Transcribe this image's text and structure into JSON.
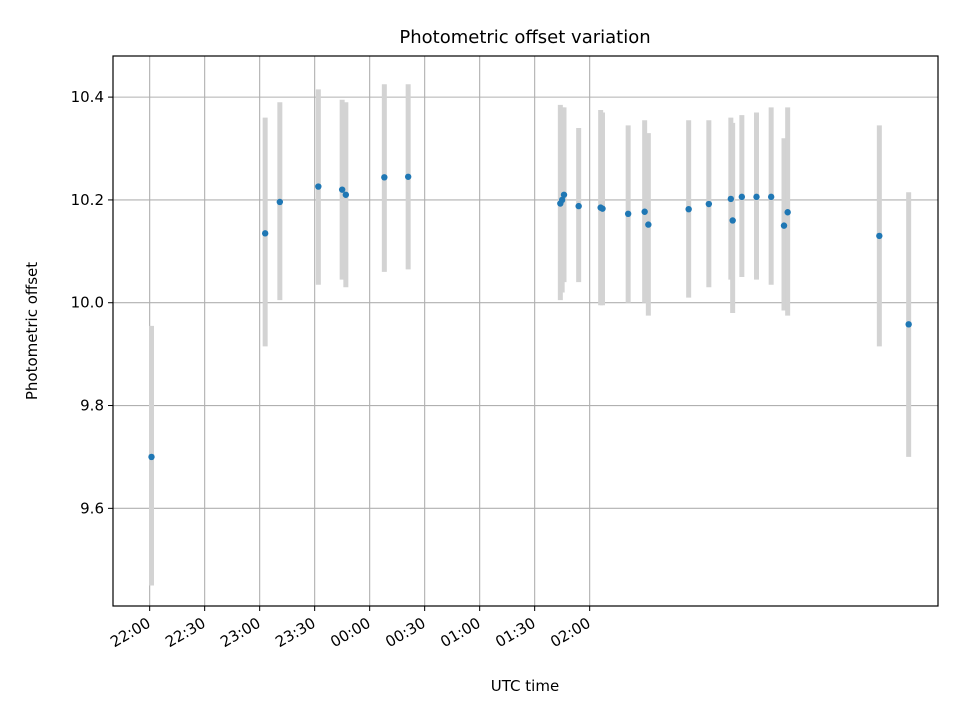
{
  "chart_data": {
    "type": "scatter",
    "title": "Photometric offset variation",
    "xlabel": "UTC time",
    "ylabel": "Photometric offset",
    "grid": true,
    "x_unit": "minutes after 22:00 UTC",
    "xlim": [
      -20,
      430
    ],
    "ylim": [
      9.41,
      10.48
    ],
    "x_ticks": [
      {
        "value": 0,
        "label": "22:00"
      },
      {
        "value": 30,
        "label": "22:30"
      },
      {
        "value": 60,
        "label": "23:00"
      },
      {
        "value": 90,
        "label": "23:30"
      },
      {
        "value": 120,
        "label": "00:00"
      },
      {
        "value": 150,
        "label": "00:30"
      },
      {
        "value": 180,
        "label": "01:00"
      },
      {
        "value": 210,
        "label": "01:30"
      },
      {
        "value": 240,
        "label": "02:00"
      }
    ],
    "y_ticks": [
      {
        "value": 9.6,
        "label": "9.6"
      },
      {
        "value": 9.8,
        "label": "9.8"
      },
      {
        "value": 10.0,
        "label": "10.0"
      },
      {
        "value": 10.2,
        "label": "10.2"
      },
      {
        "value": 10.4,
        "label": "10.4"
      }
    ],
    "series": [
      {
        "name": "Photometric offset",
        "color": "#1f77b4",
        "errorbar_color": "#d3d3d3",
        "points": [
          {
            "x": 1,
            "y": 9.7,
            "ylow": 9.45,
            "yhigh": 9.955
          },
          {
            "x": 63,
            "y": 10.135,
            "ylow": 9.915,
            "yhigh": 10.36
          },
          {
            "x": 71,
            "y": 10.196,
            "ylow": 10.005,
            "yhigh": 10.39
          },
          {
            "x": 92,
            "y": 10.226,
            "ylow": 10.035,
            "yhigh": 10.415
          },
          {
            "x": 105,
            "y": 10.22,
            "ylow": 10.045,
            "yhigh": 10.395
          },
          {
            "x": 107,
            "y": 10.21,
            "ylow": 10.03,
            "yhigh": 10.39
          },
          {
            "x": 128,
            "y": 10.244,
            "ylow": 10.06,
            "yhigh": 10.425
          },
          {
            "x": 141,
            "y": 10.245,
            "ylow": 10.065,
            "yhigh": 10.425
          },
          {
            "x": 224,
            "y": 10.193,
            "ylow": 10.005,
            "yhigh": 10.385
          },
          {
            "x": 225,
            "y": 10.2,
            "ylow": 10.02,
            "yhigh": 10.38
          },
          {
            "x": 226,
            "y": 10.21,
            "ylow": 10.04,
            "yhigh": 10.38
          },
          {
            "x": 234,
            "y": 10.188,
            "ylow": 10.04,
            "yhigh": 10.34
          },
          {
            "x": 246,
            "y": 10.185,
            "ylow": 9.995,
            "yhigh": 10.375
          },
          {
            "x": 247,
            "y": 10.183,
            "ylow": 9.995,
            "yhigh": 10.37
          },
          {
            "x": 261,
            "y": 10.173,
            "ylow": 10.0,
            "yhigh": 10.345
          },
          {
            "x": 270,
            "y": 10.177,
            "ylow": 10.0,
            "yhigh": 10.355
          },
          {
            "x": 272,
            "y": 10.152,
            "ylow": 9.975,
            "yhigh": 10.33
          },
          {
            "x": 294,
            "y": 10.182,
            "ylow": 10.01,
            "yhigh": 10.355
          },
          {
            "x": 305,
            "y": 10.192,
            "ylow": 10.03,
            "yhigh": 10.355
          },
          {
            "x": 317,
            "y": 10.202,
            "ylow": 10.045,
            "yhigh": 10.36
          },
          {
            "x": 318,
            "y": 10.16,
            "ylow": 9.98,
            "yhigh": 10.35
          },
          {
            "x": 323,
            "y": 10.206,
            "ylow": 10.05,
            "yhigh": 10.365
          },
          {
            "x": 331,
            "y": 10.206,
            "ylow": 10.045,
            "yhigh": 10.37
          },
          {
            "x": 339,
            "y": 10.206,
            "ylow": 10.035,
            "yhigh": 10.38
          },
          {
            "x": 346,
            "y": 10.15,
            "ylow": 9.985,
            "yhigh": 10.32
          },
          {
            "x": 348,
            "y": 10.176,
            "ylow": 9.975,
            "yhigh": 10.38
          },
          {
            "x": 398,
            "y": 10.13,
            "ylow": 9.915,
            "yhigh": 10.345
          },
          {
            "x": 414,
            "y": 9.958,
            "ylow": 9.7,
            "yhigh": 10.215
          }
        ]
      }
    ]
  }
}
